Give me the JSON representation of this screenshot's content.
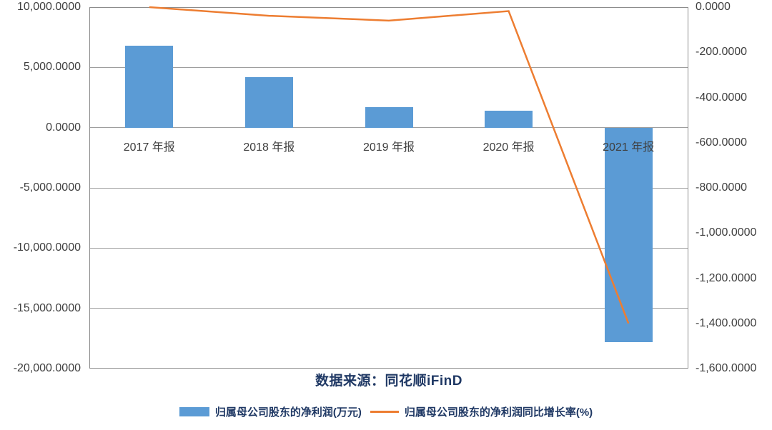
{
  "page": {
    "background": "#ffffff"
  },
  "chart_data": {
    "type": "combo-bar-line",
    "categories": [
      "2017 年报",
      "2018 年报",
      "2019 年报",
      "2020 年报",
      "2021 年报"
    ],
    "series": [
      {
        "name": "归属母公司股东的净利润(万元)",
        "type": "bar",
        "axis": "left",
        "values": [
          6800,
          4200,
          1700,
          1400,
          -17800
        ]
      },
      {
        "name": "归属母公司股东的净利润同比增长率(%)",
        "type": "line",
        "axis": "right",
        "values": [
          0,
          -38.2,
          -59.5,
          -17.6,
          -1400
        ]
      }
    ],
    "left_axis": {
      "min": -20000,
      "max": 10000,
      "step": 5000,
      "ticks": [
        {
          "label": "10,000.0000",
          "value": 10000
        },
        {
          "label": "5,000.0000",
          "value": 5000
        },
        {
          "label": "0.0000",
          "value": 0
        },
        {
          "label": "-5,000.0000",
          "value": -5000
        },
        {
          "label": "-10,000.0000",
          "value": -10000
        },
        {
          "label": "-15,000.0000",
          "value": -15000
        },
        {
          "label": "-20,000.0000",
          "value": -20000
        }
      ],
      "gridline_values": [
        5000,
        0,
        -5000,
        -10000,
        -15000
      ]
    },
    "right_axis": {
      "min": -1600,
      "max": 0,
      "step": 200,
      "ticks": [
        {
          "label": "0.0000",
          "value": 0
        },
        {
          "label": "-200.0000",
          "value": -200
        },
        {
          "label": "-400.0000",
          "value": -400
        },
        {
          "label": "-600.0000",
          "value": -600
        },
        {
          "label": "-800.0000",
          "value": -800
        },
        {
          "label": "-1,000.0000",
          "value": -1000
        },
        {
          "label": "-1,200.0000",
          "value": -1200
        },
        {
          "label": "-1,400.0000",
          "value": -1400
        },
        {
          "label": "-1,600.0000",
          "value": -1600
        }
      ]
    },
    "grid": true,
    "legend_position": "bottom",
    "source_caption": "数据来源：同花顺iFinD",
    "colors": {
      "bar": "#5B9BD5",
      "line": "#ED7D31",
      "axis_text": "#3f3f3f",
      "gridline": "#9e9e9e",
      "plot_border": "#8c8c8c",
      "caption_text": "#1F3864"
    }
  }
}
